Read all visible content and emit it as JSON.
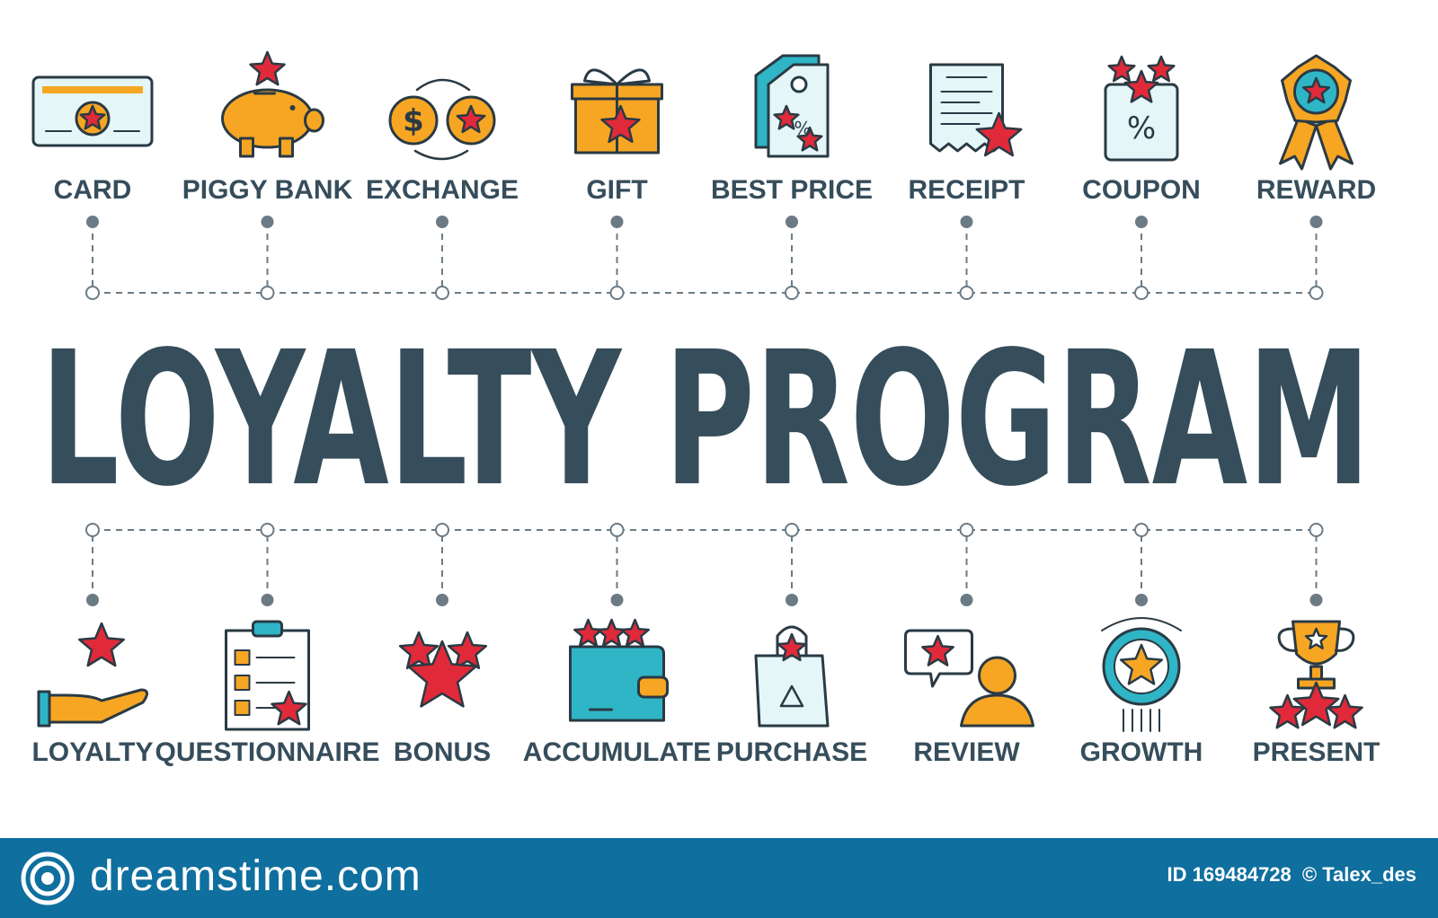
{
  "title": "LOYALTY PROGRAM",
  "top_items": [
    {
      "label": "CARD",
      "icon": "card-icon"
    },
    {
      "label": "PIGGY BANK",
      "icon": "piggy-bank-icon"
    },
    {
      "label": "EXCHANGE",
      "icon": "exchange-icon"
    },
    {
      "label": "GIFT",
      "icon": "gift-icon"
    },
    {
      "label": "BEST PRICE",
      "icon": "price-tag-icon"
    },
    {
      "label": "RECEIPT",
      "icon": "receipt-icon"
    },
    {
      "label": "COUPON",
      "icon": "coupon-icon"
    },
    {
      "label": "REWARD",
      "icon": "reward-medal-icon"
    }
  ],
  "bottom_items": [
    {
      "label": "LOYALTY",
      "icon": "hand-star-icon"
    },
    {
      "label": "QUESTIONNAIRE",
      "icon": "questionnaire-icon"
    },
    {
      "label": "BONUS",
      "icon": "bonus-stars-icon"
    },
    {
      "label": "ACCUMULATE",
      "icon": "wallet-icon"
    },
    {
      "label": "PURCHASE",
      "icon": "shopping-bag-icon"
    },
    {
      "label": "REVIEW",
      "icon": "review-icon"
    },
    {
      "label": "GROWTH",
      "icon": "growth-icon"
    },
    {
      "label": "PRESENT",
      "icon": "trophy-icon"
    }
  ],
  "footer": {
    "brand": "dreamstime.com",
    "image_id": "ID 169484728",
    "author": "© Talex_des"
  },
  "colors": {
    "title": "#364d5b",
    "connector": "#6b7b86",
    "accent_red": "#e02a3a",
    "accent_orange": "#f6a623",
    "accent_teal": "#2fb5c6",
    "light_teal": "#e4f6f8",
    "footer_bg": "#0f6f9f"
  }
}
